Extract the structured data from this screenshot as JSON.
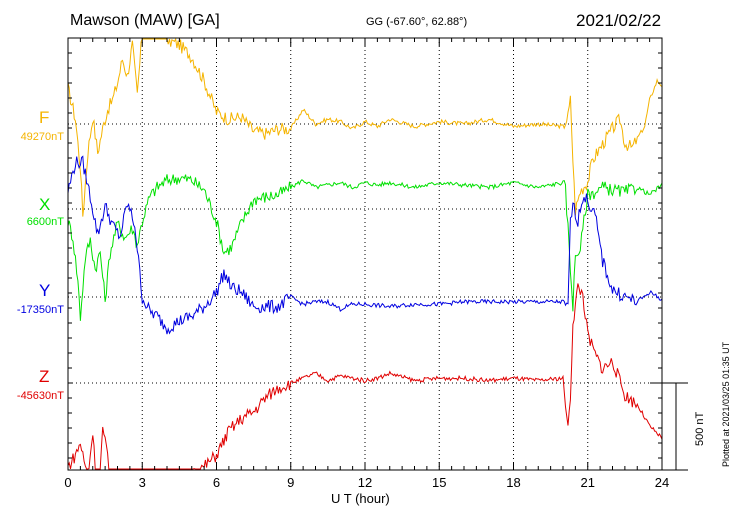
{
  "header": {
    "station": "Mawson (MAW)  [GA]",
    "coords": "GG (-67.60°,  62.88°)",
    "date": "2021/02/22"
  },
  "components": [
    {
      "letter": "F",
      "baseline": "49270nT",
      "color": "#f5b400"
    },
    {
      "letter": "X",
      "baseline": "6600nT",
      "color": "#00e000"
    },
    {
      "letter": "Y",
      "baseline": "-17350nT",
      "color": "#0000e0"
    },
    {
      "letter": "Z",
      "baseline": "-45630nT",
      "color": "#e00000"
    }
  ],
  "xaxis": {
    "label": "U T (hour)",
    "ticks": [
      "0",
      "3",
      "6",
      "9",
      "12",
      "15",
      "18",
      "21",
      "24"
    ]
  },
  "scale_bar": "500 nT",
  "plotted": "Plotted at 2021/03/25 01:35 UT",
  "chart_data": {
    "type": "line",
    "xlabel": "U T (hour)",
    "xlim": [
      0,
      24
    ],
    "scale_nT": 500,
    "grid": true,
    "series": [
      {
        "name": "F",
        "baseline": 49270,
        "color": "#f5b400",
        "x": [
          0,
          0.3,
          0.5,
          0.6,
          0.8,
          1.0,
          1.2,
          1.4,
          1.6,
          1.8,
          2.0,
          2.2,
          2.4,
          2.6,
          2.8,
          3.0,
          3.2,
          3.5,
          3.8,
          4.0,
          4.5,
          5.0,
          5.5,
          6.0,
          6.5,
          7.0,
          7.5,
          8.0,
          8.5,
          9.0,
          9.5,
          10.0,
          10.5,
          11.0,
          11.5,
          12.0,
          12.5,
          13.0,
          14.0,
          15.0,
          16.0,
          17.0,
          18.0,
          19.0,
          20.0,
          20.2,
          20.3,
          20.4,
          20.5,
          20.7,
          21.0,
          21.2,
          21.5,
          22.0,
          22.3,
          22.5,
          22.8,
          23.0,
          23.3,
          23.5,
          23.8,
          24.0
        ],
        "y": [
          150,
          20,
          -180,
          -380,
          -120,
          30,
          -120,
          -20,
          60,
          100,
          170,
          270,
          200,
          330,
          120,
          380,
          450,
          390,
          430,
          350,
          330,
          280,
          180,
          50,
          20,
          30,
          -30,
          -40,
          -20,
          -20,
          60,
          0,
          20,
          10,
          -20,
          10,
          -10,
          20,
          -10,
          10,
          0,
          20,
          -10,
          0,
          -10,
          30,
          100,
          -150,
          -360,
          -280,
          -240,
          -150,
          -100,
          -20,
          20,
          -80,
          -100,
          -60,
          -10,
          100,
          180,
          160
        ]
      },
      {
        "name": "X",
        "baseline": 6600,
        "color": "#00e000",
        "x": [
          0,
          0.2,
          0.4,
          0.5,
          0.7,
          0.9,
          1.1,
          1.3,
          1.5,
          1.7,
          2.0,
          2.3,
          2.6,
          2.8,
          3.0,
          3.3,
          3.6,
          4.0,
          4.5,
          5.0,
          5.5,
          6.0,
          6.3,
          6.6,
          7.0,
          7.5,
          8.0,
          8.5,
          9.0,
          9.5,
          10.0,
          10.5,
          11.0,
          11.5,
          12.0,
          12.5,
          13.0,
          14.0,
          15.0,
          16.0,
          17.0,
          18.0,
          19.0,
          19.5,
          20.0,
          20.1,
          20.2,
          20.3,
          20.4,
          20.5,
          20.7,
          21.0,
          21.3,
          21.6,
          22.0,
          22.5,
          23.0,
          23.5,
          24.0
        ],
        "y": [
          -50,
          -120,
          -300,
          -450,
          -200,
          -130,
          -250,
          -180,
          -380,
          -180,
          -60,
          -120,
          -80,
          -150,
          -50,
          50,
          90,
          120,
          130,
          120,
          80,
          -50,
          -180,
          -160,
          -60,
          40,
          50,
          60,
          90,
          120,
          90,
          100,
          110,
          90,
          110,
          100,
          110,
          90,
          110,
          100,
          90,
          110,
          90,
          100,
          110,
          80,
          -80,
          -250,
          -400,
          -200,
          -160,
          60,
          70,
          90,
          80,
          70,
          90,
          60,
          100
        ]
      },
      {
        "name": "Y",
        "baseline": -17350,
        "color": "#0000e0",
        "x": [
          0,
          0.3,
          0.6,
          0.9,
          1.2,
          1.5,
          1.8,
          2.1,
          2.4,
          2.7,
          3.0,
          3.3,
          3.6,
          4.0,
          4.5,
          5.0,
          5.5,
          6.0,
          6.3,
          6.6,
          7.0,
          7.5,
          8.0,
          8.5,
          9.0,
          9.5,
          10.0,
          10.5,
          11.0,
          11.5,
          12.0,
          13.0,
          14.0,
          15.0,
          16.0,
          17.0,
          18.0,
          19.0,
          20.0,
          20.2,
          20.3,
          20.4,
          20.6,
          20.8,
          21.0,
          21.3,
          21.6,
          22.0,
          22.5,
          23.0,
          23.5,
          24.0
        ],
        "y": [
          440,
          560,
          560,
          420,
          260,
          380,
          300,
          250,
          390,
          300,
          0,
          -60,
          -80,
          -130,
          -100,
          -80,
          -40,
          20,
          100,
          40,
          20,
          -40,
          -40,
          -40,
          0,
          -30,
          -20,
          -20,
          -50,
          -30,
          -30,
          -40,
          -30,
          -30,
          -20,
          -20,
          -20,
          -20,
          -20,
          -50,
          320,
          380,
          320,
          420,
          400,
          340,
          150,
          30,
          0,
          -20,
          20,
          -10
        ]
      },
      {
        "name": "Z",
        "baseline": -45630,
        "color": "#e00000",
        "x": [
          0,
          0.3,
          0.5,
          0.8,
          1.0,
          1.2,
          1.4,
          1.6,
          1.8,
          2.0,
          2.3,
          2.6,
          2.9,
          3.2,
          3.5,
          3.8,
          4.2,
          4.6,
          5.0,
          5.5,
          6.0,
          6.5,
          7.0,
          7.5,
          8.0,
          8.5,
          9.0,
          9.5,
          10.0,
          10.5,
          11.0,
          11.5,
          12.0,
          12.5,
          13.0,
          14.0,
          15.0,
          16.0,
          17.0,
          18.0,
          19.0,
          20.0,
          20.1,
          20.2,
          20.3,
          20.4,
          20.6,
          20.8,
          21.0,
          21.3,
          21.6,
          22.0,
          22.5,
          23.0,
          23.5,
          24.0
        ],
        "y": [
          -350,
          -300,
          -250,
          -400,
          -200,
          -520,
          -200,
          -300,
          -500,
          -450,
          -550,
          -500,
          -600,
          -650,
          -550,
          -480,
          -500,
          -450,
          -380,
          -350,
          -300,
          -200,
          -150,
          -120,
          -60,
          -20,
          0,
          20,
          40,
          10,
          30,
          20,
          10,
          20,
          40,
          10,
          20,
          20,
          10,
          20,
          10,
          20,
          -80,
          -200,
          -50,
          250,
          400,
          370,
          200,
          120,
          60,
          90,
          -50,
          -90,
          -180,
          -230
        ]
      }
    ]
  }
}
